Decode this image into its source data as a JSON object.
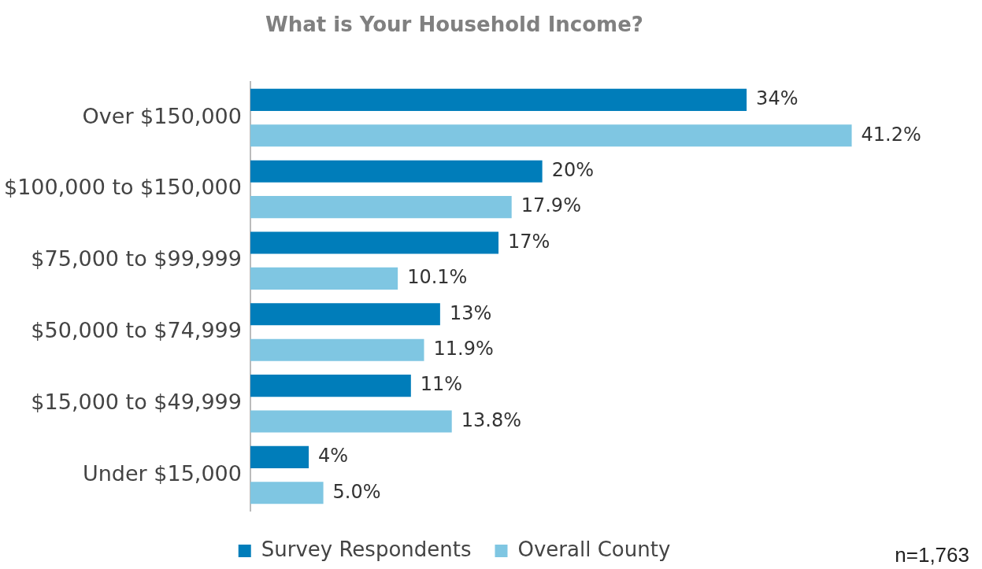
{
  "chart_data": {
    "type": "bar",
    "orientation": "horizontal",
    "title": "What is Your Household Income?",
    "categories": [
      "Over $150,000",
      "$100,000 to $150,000",
      "$75,000 to $99,999",
      "$50,000 to $74,999",
      "$15,000 to $49,999",
      "Under $15,000"
    ],
    "series": [
      {
        "name": "Survey Respondents",
        "color": "#007dba",
        "values": [
          34,
          20,
          17,
          13,
          11,
          4
        ],
        "value_labels": [
          "34%",
          "20%",
          "17%",
          "13%",
          "11%",
          "4%"
        ]
      },
      {
        "name": "Overall County",
        "color": "#7fc6e2",
        "values": [
          41.2,
          17.9,
          10.1,
          11.9,
          13.8,
          5.0
        ],
        "value_labels": [
          "41.2%",
          "17.9%",
          "10.1%",
          "11.9%",
          "13.8%",
          "5.0%"
        ]
      }
    ],
    "legend": "bottom",
    "grid": false,
    "annotations": [
      "n=1,763"
    ]
  }
}
